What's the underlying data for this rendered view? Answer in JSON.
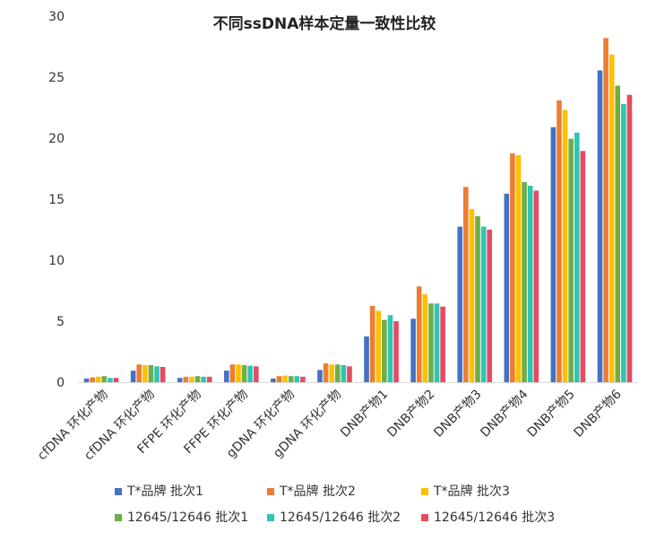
{
  "chart_data": {
    "type": "bar",
    "title": "不同ssDNA样本定量一致性比较",
    "xlabel": "",
    "ylabel": "",
    "ylim": [
      0,
      30
    ],
    "yticks": [
      0,
      5,
      10,
      15,
      20,
      25,
      30
    ],
    "grid": false,
    "legend_position": "bottom",
    "categories": [
      "cfDNA 环化产物",
      "cfDNA 环化产物",
      "FFPE 环化产物",
      "FFPE 环化产物",
      "gDNA 环化产物",
      "gDNA 环化产物",
      "DNB产物1",
      "DNB产物2",
      "DNB产物3",
      "DNB产物4",
      "DNB产物5",
      "DNB产物6"
    ],
    "series": [
      {
        "name": "T*品牌 批次1",
        "color": "#4472C4",
        "values": [
          0.3,
          0.95,
          0.35,
          0.95,
          0.3,
          1.0,
          3.75,
          5.2,
          12.75,
          15.45,
          20.9,
          25.55
        ]
      },
      {
        "name": "T*品牌 批次2",
        "color": "#ED7D31",
        "values": [
          0.4,
          1.45,
          0.45,
          1.45,
          0.5,
          1.55,
          6.25,
          7.85,
          16.0,
          18.75,
          23.1,
          28.2
        ]
      },
      {
        "name": "T*品牌 批次3",
        "color": "#FFC000",
        "values": [
          0.45,
          1.4,
          0.45,
          1.45,
          0.55,
          1.45,
          5.85,
          7.2,
          14.2,
          18.6,
          22.3,
          26.85
        ]
      },
      {
        "name": "12645/12646 批次1",
        "color": "#70AD47",
        "values": [
          0.5,
          1.4,
          0.5,
          1.4,
          0.5,
          1.45,
          5.1,
          6.45,
          13.6,
          16.4,
          19.95,
          24.3
        ]
      },
      {
        "name": "12645/12646 批次2",
        "color": "#2EC4B6",
        "values": [
          0.35,
          1.3,
          0.45,
          1.35,
          0.5,
          1.4,
          5.5,
          6.45,
          12.75,
          16.1,
          20.45,
          22.8
        ]
      },
      {
        "name": "12645/12646 批次3",
        "color": "#E84A5F",
        "values": [
          0.35,
          1.25,
          0.45,
          1.3,
          0.45,
          1.3,
          5.0,
          6.2,
          12.5,
          15.7,
          18.95,
          23.55
        ]
      }
    ]
  }
}
